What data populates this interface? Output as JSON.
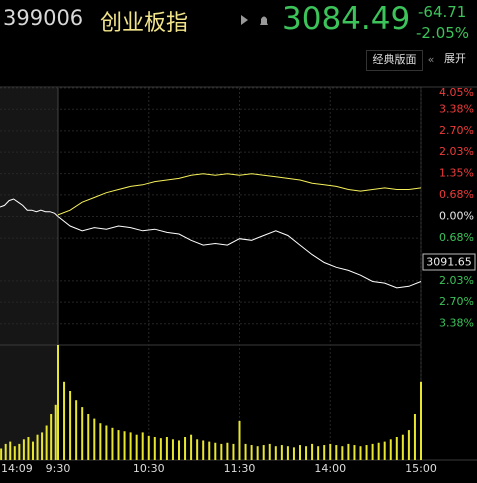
{
  "header": {
    "code": "399006",
    "name": "创业板指",
    "price": "3084.49",
    "change": "-64.71",
    "change_pct": "-2.05%"
  },
  "toolbar": {
    "layout_button": "经典版面",
    "expand_button": "展开"
  },
  "chart_data": [
    {
      "type": "line",
      "cursor_label": "3091.65",
      "xlim": [
        -51,
        240
      ],
      "ylim": [
        -4.05,
        4.05
      ],
      "xticks": [
        {
          "value": -51,
          "label": "14:09"
        },
        {
          "value": 0,
          "label": "9:30"
        },
        {
          "value": 60,
          "label": "10:30"
        },
        {
          "value": 120,
          "label": "11:30"
        },
        {
          "value": 180,
          "label": "14:00"
        },
        {
          "value": 240,
          "label": "15:00"
        }
      ],
      "yticks": [
        {
          "value": 4.05,
          "label": "4.05%"
        },
        {
          "value": 3.38,
          "label": "3.38%"
        },
        {
          "value": 2.7,
          "label": "2.70%"
        },
        {
          "value": 2.03,
          "label": "2.03%"
        },
        {
          "value": 1.35,
          "label": "1.35%"
        },
        {
          "value": 0.68,
          "label": "0.68%"
        },
        {
          "value": 0,
          "label": "0.00%"
        },
        {
          "value": -0.68,
          "label": "0.68%"
        },
        {
          "value": -2.03,
          "label": "2.03%"
        },
        {
          "value": -2.7,
          "label": "2.70%"
        },
        {
          "value": -3.38,
          "label": "3.38%"
        }
      ],
      "grid": true,
      "series": [
        {
          "color": "#ffffff",
          "x": [
            -51,
            -47,
            -43,
            -39,
            -35,
            -31,
            -27,
            -23,
            -19,
            -15,
            -11,
            -7,
            -3,
            0
          ],
          "values": [
            0.3,
            0.35,
            0.5,
            0.55,
            0.45,
            0.35,
            0.2,
            0.2,
            0.15,
            0.2,
            0.15,
            0.15,
            0.1,
            0.0
          ]
        },
        {
          "color": "#ffffff",
          "x": [
            0,
            8,
            16,
            24,
            32,
            40,
            48,
            56,
            64,
            72,
            80,
            88,
            96,
            104,
            112,
            120,
            128,
            136,
            144,
            152,
            160,
            168,
            176,
            184,
            192,
            200,
            208,
            216,
            224,
            232,
            240
          ],
          "values": [
            0,
            -0.3,
            -0.45,
            -0.35,
            -0.4,
            -0.3,
            -0.35,
            -0.45,
            -0.4,
            -0.5,
            -0.55,
            -0.75,
            -0.9,
            -0.85,
            -0.9,
            -0.7,
            -0.75,
            -0.6,
            -0.45,
            -0.6,
            -0.9,
            -1.2,
            -1.45,
            -1.6,
            -1.7,
            -1.85,
            -2.05,
            -2.1,
            -2.25,
            -2.2,
            -2.05
          ]
        },
        {
          "color": "#f5f05a",
          "x": [
            0,
            8,
            16,
            24,
            32,
            40,
            48,
            56,
            64,
            72,
            80,
            88,
            96,
            104,
            112,
            120,
            128,
            136,
            144,
            152,
            160,
            168,
            176,
            184,
            192,
            200,
            208,
            216,
            224,
            232,
            240
          ],
          "values": [
            0.05,
            0.2,
            0.45,
            0.6,
            0.75,
            0.85,
            0.95,
            1.0,
            1.1,
            1.15,
            1.2,
            1.3,
            1.35,
            1.3,
            1.35,
            1.3,
            1.35,
            1.3,
            1.25,
            1.2,
            1.15,
            1.05,
            1.0,
            0.95,
            0.85,
            0.8,
            0.85,
            0.9,
            0.85,
            0.85,
            0.9
          ]
        }
      ]
    },
    {
      "type": "bar",
      "color": "#e8e62e",
      "ylim": [
        0,
        100
      ],
      "x": [
        -50,
        -46,
        -42,
        -38,
        -34,
        -30,
        -26,
        -22,
        -18,
        -14,
        -10,
        -6,
        -2,
        0,
        4,
        8,
        12,
        16,
        20,
        24,
        28,
        32,
        36,
        40,
        44,
        48,
        52,
        56,
        60,
        64,
        68,
        72,
        76,
        80,
        84,
        88,
        92,
        96,
        100,
        104,
        108,
        112,
        116,
        120,
        124,
        128,
        132,
        136,
        140,
        144,
        148,
        152,
        156,
        160,
        164,
        168,
        172,
        176,
        180,
        184,
        188,
        192,
        196,
        200,
        204,
        208,
        212,
        216,
        220,
        224,
        228,
        232,
        236,
        240
      ],
      "values": [
        10,
        14,
        16,
        12,
        14,
        18,
        20,
        16,
        22,
        24,
        30,
        40,
        48,
        100,
        68,
        60,
        52,
        46,
        40,
        36,
        32,
        30,
        28,
        26,
        25,
        24,
        22,
        24,
        21,
        20,
        19,
        20,
        18,
        17,
        20,
        22,
        18,
        17,
        16,
        15,
        14,
        15,
        14,
        34,
        14,
        13,
        12,
        13,
        14,
        12,
        13,
        12,
        11,
        13,
        12,
        14,
        12,
        13,
        14,
        13,
        12,
        14,
        13,
        12,
        13,
        14,
        15,
        16,
        18,
        20,
        22,
        26,
        40,
        68
      ]
    }
  ]
}
